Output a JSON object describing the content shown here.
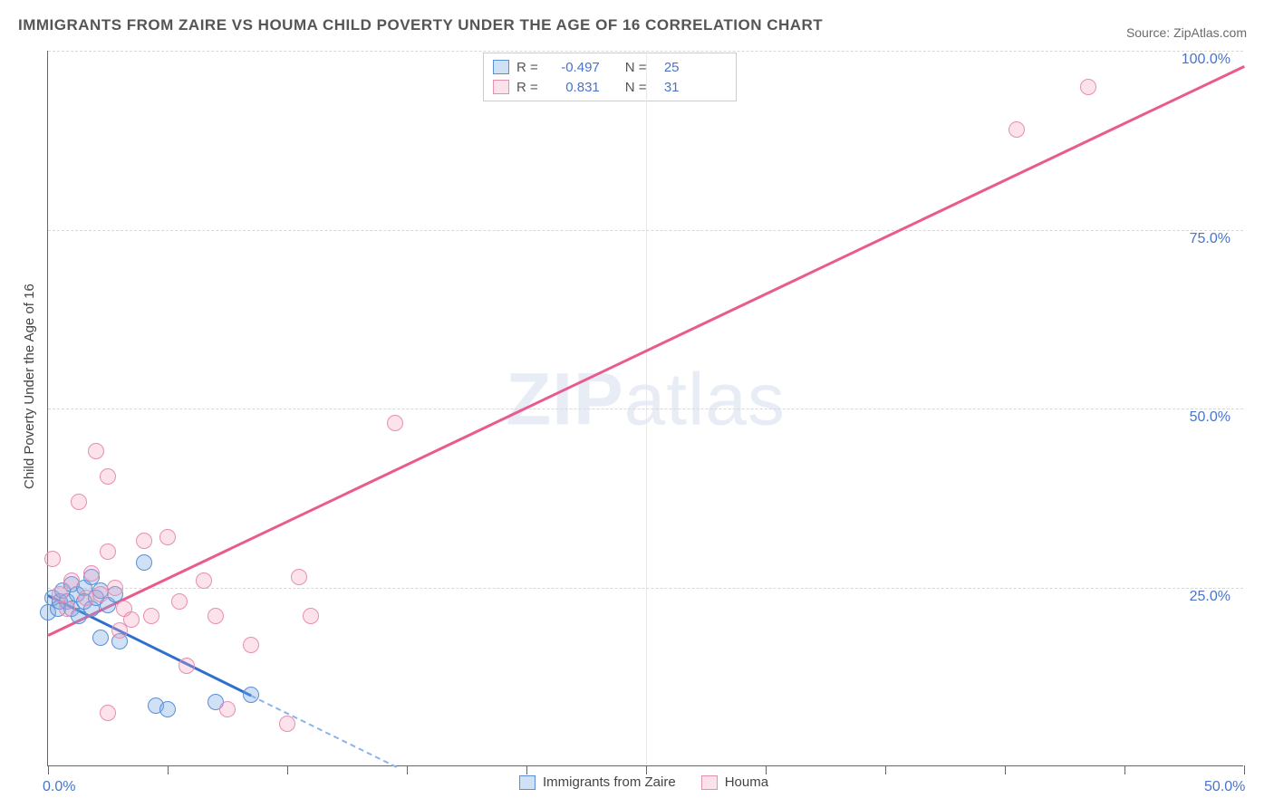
{
  "title": "IMMIGRANTS FROM ZAIRE VS HOUMA CHILD POVERTY UNDER THE AGE OF 16 CORRELATION CHART",
  "source_label": "Source: ",
  "source_value": "ZipAtlas.com",
  "y_axis_title": "Child Poverty Under the Age of 16",
  "watermark_bold": "ZIP",
  "watermark_rest": "atlas",
  "chart": {
    "type": "scatter",
    "xlim": [
      0,
      50
    ],
    "ylim": [
      0,
      100
    ],
    "x_ticks": [
      0,
      5,
      10,
      15,
      20,
      25,
      30,
      35,
      40,
      45,
      50
    ],
    "x_tick_labels": {
      "0": "0.0%",
      "50": "50.0%"
    },
    "y_gridlines": [
      25,
      50,
      75,
      100
    ],
    "y_tick_labels": {
      "25": "25.0%",
      "50": "50.0%",
      "75": "75.0%",
      "100": "100.0%"
    },
    "background_color": "#ffffff",
    "grid_color": "#d8d8d8",
    "axis_color": "#666666",
    "tick_label_color": "#4a74c9",
    "tick_label_fontsize": 16,
    "title_fontsize": 17,
    "title_color": "#555555"
  },
  "series": [
    {
      "name": "Immigrants from Zaire",
      "marker_fill": "rgba(120,170,230,0.35)",
      "marker_stroke": "#5a8fd6",
      "marker_radius": 9,
      "trend_color": "#2f6fd0",
      "trend_dash_color": "#8ab4e8",
      "R": "-0.497",
      "N": "25",
      "trend": {
        "x1": 0,
        "y1": 24,
        "x2": 8.5,
        "y2": 10
      },
      "trend_dash": {
        "x1": 8.5,
        "y1": 10,
        "x2": 14.6,
        "y2": 0
      },
      "points": [
        [
          0.0,
          21.5
        ],
        [
          0.2,
          23.5
        ],
        [
          0.4,
          22.0
        ],
        [
          0.5,
          23.0
        ],
        [
          0.6,
          24.5
        ],
        [
          0.8,
          23.0
        ],
        [
          1.0,
          25.5
        ],
        [
          1.0,
          22.0
        ],
        [
          1.2,
          24.0
        ],
        [
          1.3,
          21.0
        ],
        [
          1.5,
          25.0
        ],
        [
          1.5,
          23.0
        ],
        [
          1.8,
          26.5
        ],
        [
          1.8,
          22.0
        ],
        [
          2.0,
          23.5
        ],
        [
          2.2,
          24.5
        ],
        [
          2.2,
          18.0
        ],
        [
          2.5,
          22.5
        ],
        [
          2.8,
          24.0
        ],
        [
          3.0,
          17.5
        ],
        [
          4.0,
          28.5
        ],
        [
          4.5,
          8.5
        ],
        [
          5.0,
          8.0
        ],
        [
          7.0,
          9.0
        ],
        [
          8.5,
          10.0
        ]
      ]
    },
    {
      "name": "Houma",
      "marker_fill": "rgba(245,160,190,0.30)",
      "marker_stroke": "#e68fb0",
      "marker_radius": 9,
      "trend_color": "#e95b8f",
      "R": "0.831",
      "N": "31",
      "trend": {
        "x1": 0,
        "y1": 18.5,
        "x2": 50,
        "y2": 98
      },
      "points": [
        [
          0.2,
          29.0
        ],
        [
          0.5,
          24.0
        ],
        [
          0.8,
          22.0
        ],
        [
          1.0,
          26.0
        ],
        [
          1.3,
          37.0
        ],
        [
          1.6,
          23.5
        ],
        [
          1.8,
          27.0
        ],
        [
          2.0,
          44.0
        ],
        [
          2.2,
          24.0
        ],
        [
          2.5,
          40.5
        ],
        [
          2.5,
          30.0
        ],
        [
          2.5,
          7.5
        ],
        [
          2.8,
          25.0
        ],
        [
          3.0,
          19.0
        ],
        [
          3.2,
          22.0
        ],
        [
          3.5,
          20.5
        ],
        [
          4.0,
          31.5
        ],
        [
          4.3,
          21.0
        ],
        [
          5.0,
          32.0
        ],
        [
          5.5,
          23.0
        ],
        [
          5.8,
          14.0
        ],
        [
          6.5,
          26.0
        ],
        [
          7.0,
          21.0
        ],
        [
          7.5,
          8.0
        ],
        [
          8.5,
          17.0
        ],
        [
          10.0,
          6.0
        ],
        [
          10.5,
          26.5
        ],
        [
          11.0,
          21.0
        ],
        [
          14.5,
          48.0
        ],
        [
          40.5,
          89.0
        ],
        [
          43.5,
          95.0
        ]
      ]
    }
  ],
  "legend_top": {
    "rows": [
      {
        "swatch_fill": "rgba(120,170,230,0.35)",
        "swatch_stroke": "#5a8fd6",
        "r_label": "R =",
        "r_val": "-0.497",
        "n_label": "N =",
        "n_val": "25"
      },
      {
        "swatch_fill": "rgba(245,160,190,0.30)",
        "swatch_stroke": "#e68fb0",
        "r_label": "R =",
        "r_val": " 0.831",
        "n_label": "N =",
        "n_val": "31"
      }
    ]
  },
  "legend_bottom": {
    "items": [
      {
        "swatch_fill": "rgba(120,170,230,0.35)",
        "swatch_stroke": "#5a8fd6",
        "label": "Immigrants from Zaire"
      },
      {
        "swatch_fill": "rgba(245,160,190,0.30)",
        "swatch_stroke": "#e68fb0",
        "label": "Houma"
      }
    ]
  }
}
